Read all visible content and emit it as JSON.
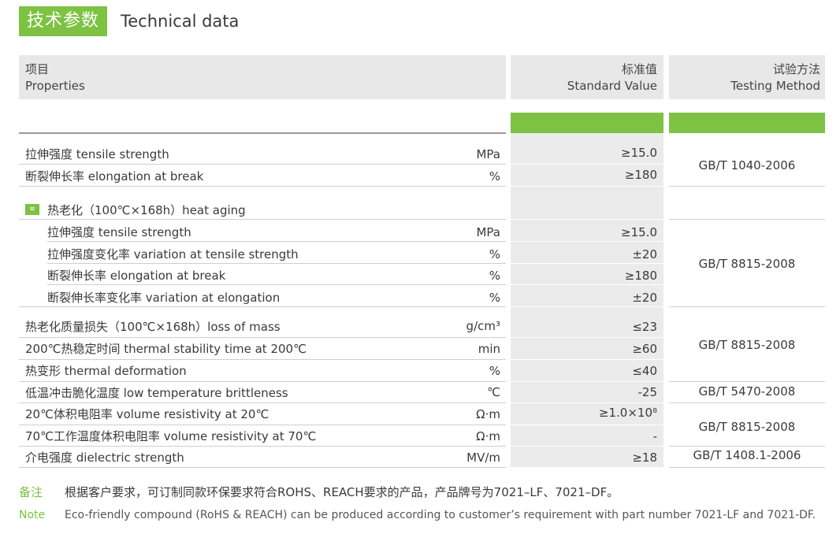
{
  "title": {
    "cn": "技术参数",
    "en": "Technical data"
  },
  "header": {
    "col1_cn": "项目",
    "col1_en": "Properties",
    "col2_cn": "标准值",
    "col2_en": "Standard Value",
    "col3_cn": "试验方法",
    "col3_en": "Testing Method"
  },
  "rows": [
    {
      "prop": "拉伸强度 tensile strength",
      "unit": "MPa",
      "value": "≥15.0"
    },
    {
      "prop": "断裂伸长率 elongation at break",
      "unit": "%",
      "value": "≥180"
    },
    {
      "prop": "热老化（100℃×168h）heat aging",
      "unit": "",
      "value": ""
    },
    {
      "prop": "拉伸强度 tensile strength",
      "unit": "MPa",
      "value": "≥15.0"
    },
    {
      "prop": "拉伸强度变化率 variation at tensile strength",
      "unit": "%",
      "value": "±20"
    },
    {
      "prop": "断裂伸长率 elongation at break",
      "unit": "%",
      "value": "≥180"
    },
    {
      "prop": "断裂伸长率变化率 variation at elongation",
      "unit": "%",
      "value": "±20"
    },
    {
      "prop": "热老化质量损失（100℃×168h）loss of mass",
      "unit": "g/cm³",
      "value": "≤23"
    },
    {
      "prop": "200℃热稳定时间 thermal stability time at 200℃",
      "unit": "min",
      "value": "≥60"
    },
    {
      "prop": "热变形 thermal deformation",
      "unit": "%",
      "value": "≤40"
    },
    {
      "prop": "低温冲击脆化温度 low temperature brittleness",
      "unit": "℃",
      "value": "-25"
    },
    {
      "prop": "20℃体积电阻率 volume resistivity at 20℃",
      "unit": "Ω·m",
      "value": "≥1.0×10⁸"
    },
    {
      "prop": "70℃工作温度体积电阻率 volume resistivity at 70℃",
      "unit": "Ω·m",
      "value": "-"
    },
    {
      "prop": "介电强度 dielectric strength",
      "unit": "MV/m",
      "value": "≥18"
    }
  ],
  "methods": [
    "GB/T 1040-2006",
    "GB/T 8815-2008",
    "GB/T 8815-2008",
    "GB/T 5470-2008",
    "GB/T 8815-2008",
    "GB/T 1408.1-2006"
  ],
  "heat_icon": "heat-aging-icon",
  "notes": {
    "cn_label": "备注",
    "cn_text": "根据客户要求，可订制同款环保要求符合ROHS、REACH要求的产品，产品牌号为7021–LF、7021–DF。",
    "en_label": "Note",
    "en_text": "Eco-friendly compound (RoHS & REACH) can be produced according to customer’s requirement with part number 7021-LF and 7021-DF."
  },
  "colors": {
    "accent": "#7dc242",
    "header_bg": "#e8e8e8"
  }
}
